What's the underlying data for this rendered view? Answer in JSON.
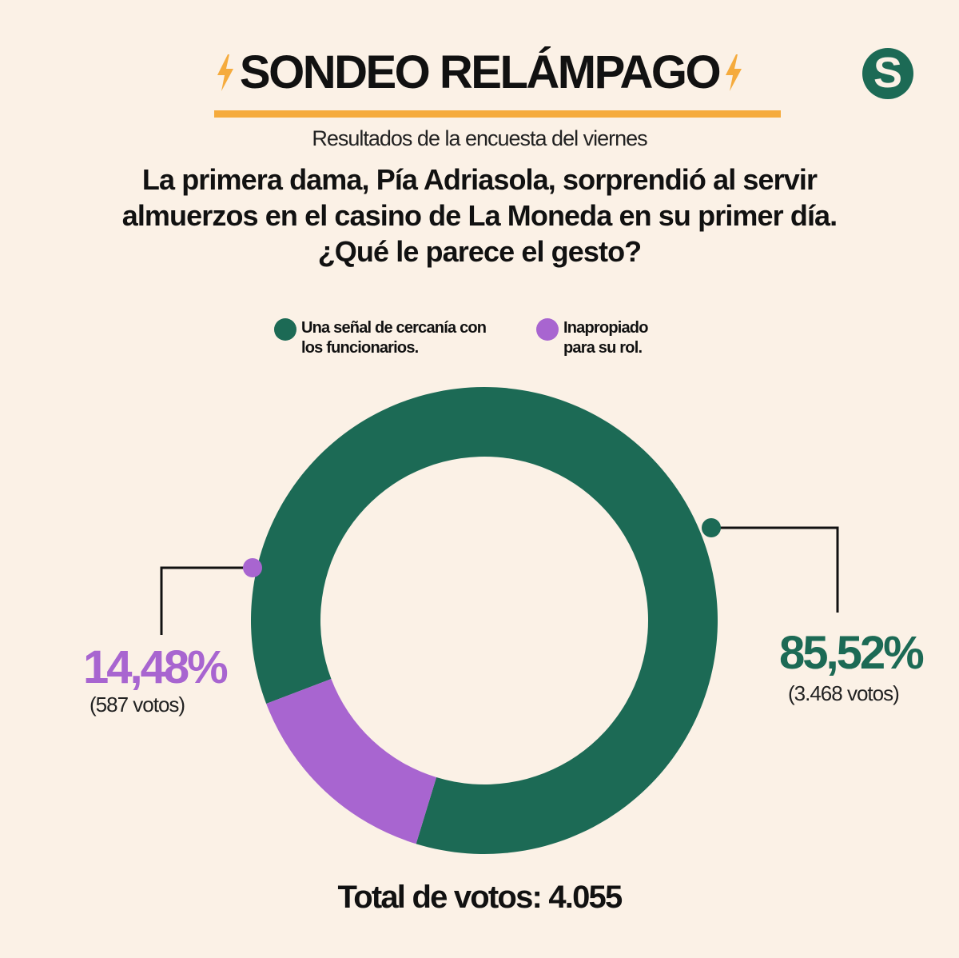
{
  "header": {
    "title": "SONDEO RELÁMPAGO",
    "subtitle": "Resultados de la encuesta del viernes",
    "question": "La primera dama, Pía Adriasola, sorprendió al servir almuerzos en el casino de La Moneda en su primer día. ¿Qué le parece el gesto?"
  },
  "logo": {
    "letter": "S"
  },
  "legend": [
    {
      "label": "Una señal de cercanía con los funcionarios.",
      "color": "#1c6a55"
    },
    {
      "label": "Inapropiado para su rol.",
      "color": "#a865d0"
    }
  ],
  "labels": {
    "green_pct": "85,52%",
    "green_votes": "(3.468 votos)",
    "purple_pct": "14,48%",
    "purple_votes": "(587 votos)"
  },
  "total": "Total de votos: 4.055",
  "colors": {
    "background": "#fbf1e6",
    "green": "#1c6a55",
    "purple": "#a865d0",
    "accent": "#f5ab3d"
  },
  "chart_data": {
    "type": "pie",
    "categories": [
      "Una señal de cercanía con los funcionarios.",
      "Inapropiado para su rol."
    ],
    "values": [
      85.52,
      14.48
    ],
    "votes": [
      3468,
      587
    ],
    "total_votes": 4055
  }
}
